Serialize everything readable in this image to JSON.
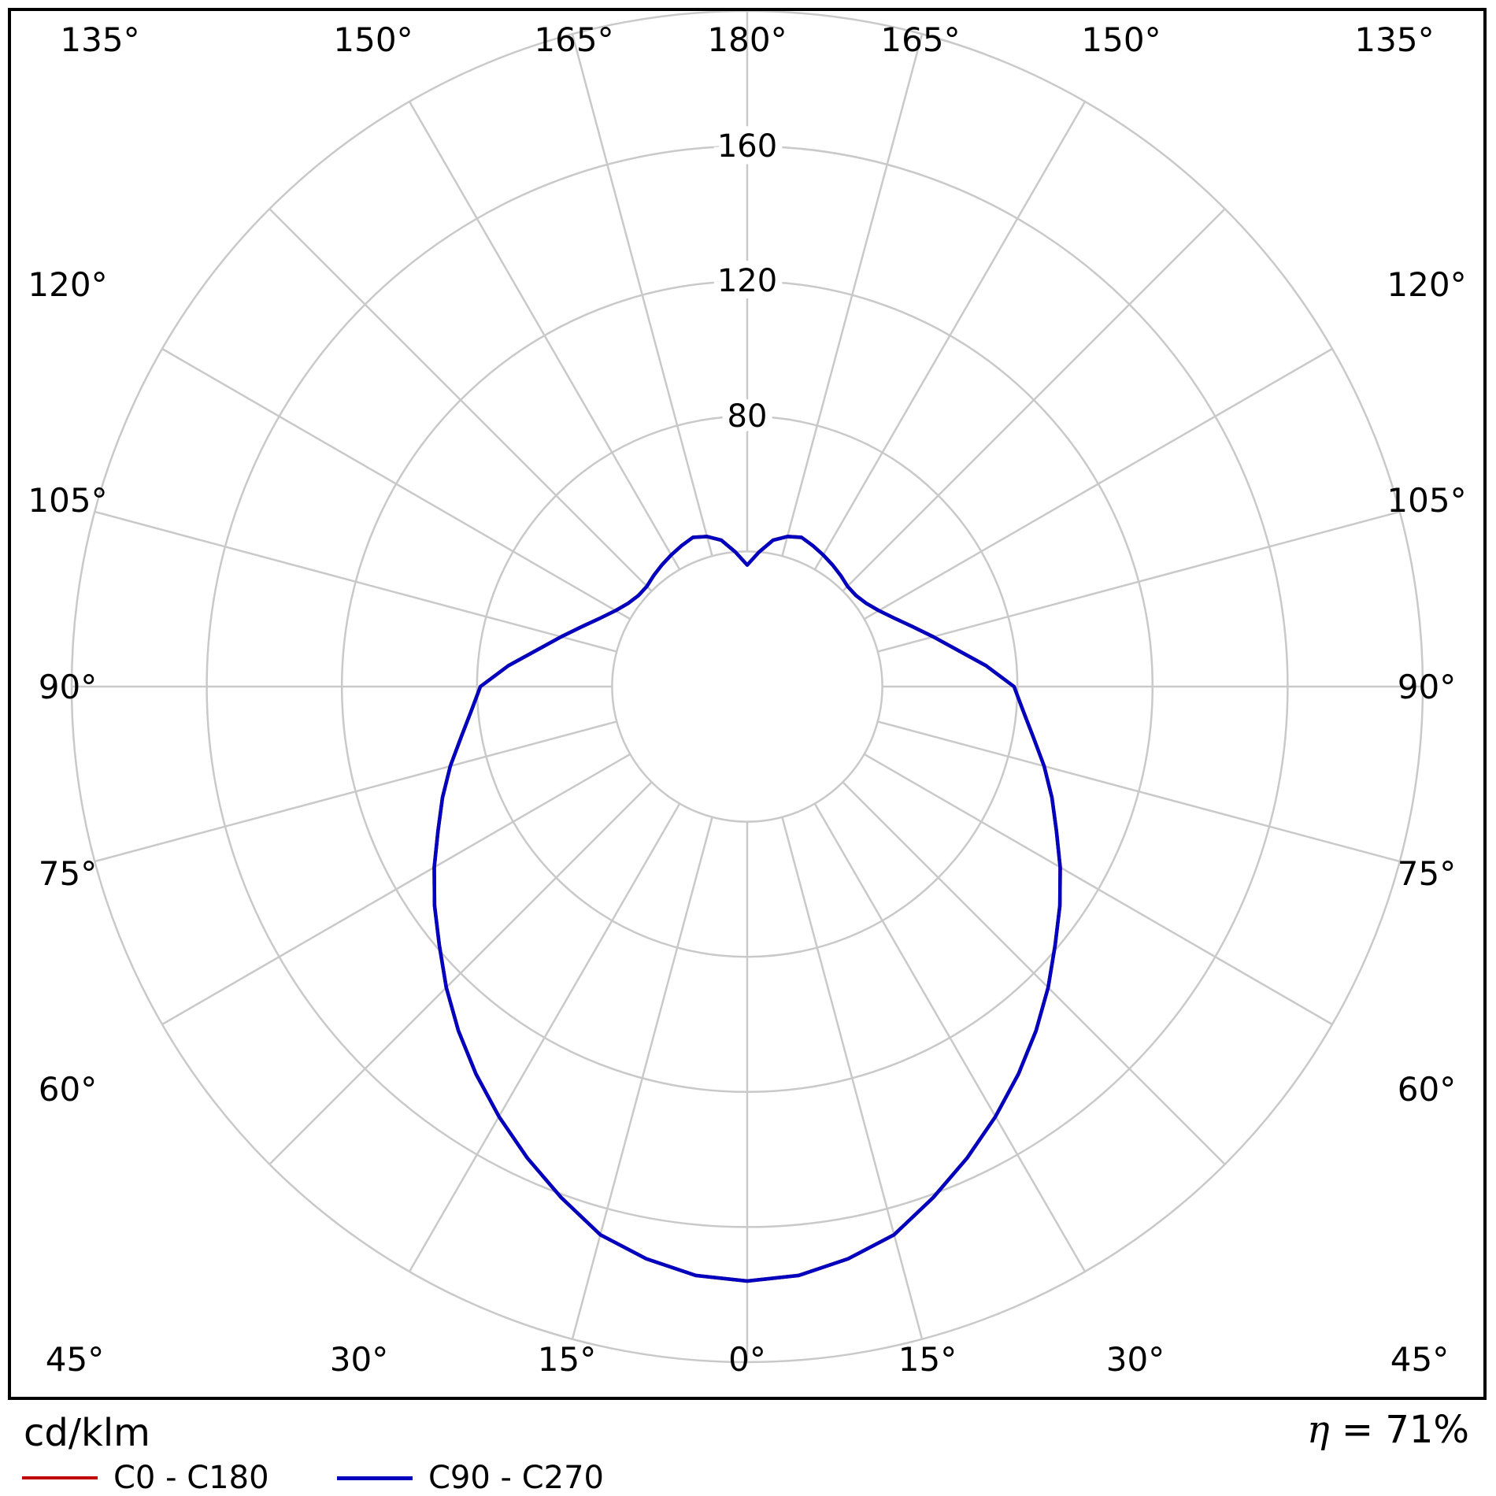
{
  "chart_data": {
    "type": "polar",
    "subtype": "photometric-luminous-intensity-distribution",
    "units": "cd/klm",
    "axis_range": [
      0,
      200
    ],
    "ring_values": [
      40,
      80,
      120,
      160,
      200
    ],
    "ring_label_values": [
      80,
      120,
      160
    ],
    "ring_label_texts": [
      "80",
      "120",
      "160"
    ],
    "angle_ticks_deg": [
      0,
      15,
      30,
      45,
      60,
      75,
      90,
      105,
      120,
      135,
      150,
      165,
      180
    ],
    "angle_tick_labels": [
      "0°",
      "15°",
      "30°",
      "45°",
      "60°",
      "75°",
      "90°",
      "105°",
      "120°",
      "135°",
      "150°",
      "165°",
      "180°"
    ],
    "grid_color": "#c9c9c9",
    "gamma_deg": [
      0,
      5,
      10,
      15,
      20,
      25,
      30,
      35,
      40,
      45,
      50,
      55,
      60,
      65,
      70,
      75,
      80,
      85,
      90,
      95,
      100,
      105,
      110,
      115,
      120,
      125,
      130,
      135,
      140,
      145,
      150,
      155,
      160,
      165,
      170,
      175,
      180
    ],
    "series": [
      {
        "name": "C0 - C180",
        "color": "#c00000",
        "values": [
          176,
          175,
          172,
          168,
          161,
          154,
          147,
          140,
          133,
          126,
          119,
          113,
          107,
          101,
          96,
          91,
          86,
          82,
          79,
          71,
          63,
          57,
          52,
          48,
          45,
          43,
          42,
          42,
          43,
          44,
          45,
          46,
          47,
          46,
          44,
          40,
          36
        ]
      },
      {
        "name": "C90 - C270",
        "color": "#0000bf",
        "values": [
          176,
          175,
          172,
          168,
          161,
          154,
          147,
          140,
          133,
          126,
          119,
          113,
          107,
          101,
          96,
          91,
          86,
          82,
          79,
          71,
          63,
          57,
          52,
          48,
          45,
          43,
          42,
          42,
          43,
          44,
          45,
          46,
          47,
          46,
          44,
          40,
          36
        ]
      }
    ]
  },
  "footer": {
    "units_label": "cd/klm",
    "eta_symbol": "η",
    "eta_rest": " = 71%",
    "legend": [
      {
        "label": "C0 - C180",
        "color": "#c00000"
      },
      {
        "label": "C90 - C270",
        "color": "#0000bf"
      }
    ]
  }
}
